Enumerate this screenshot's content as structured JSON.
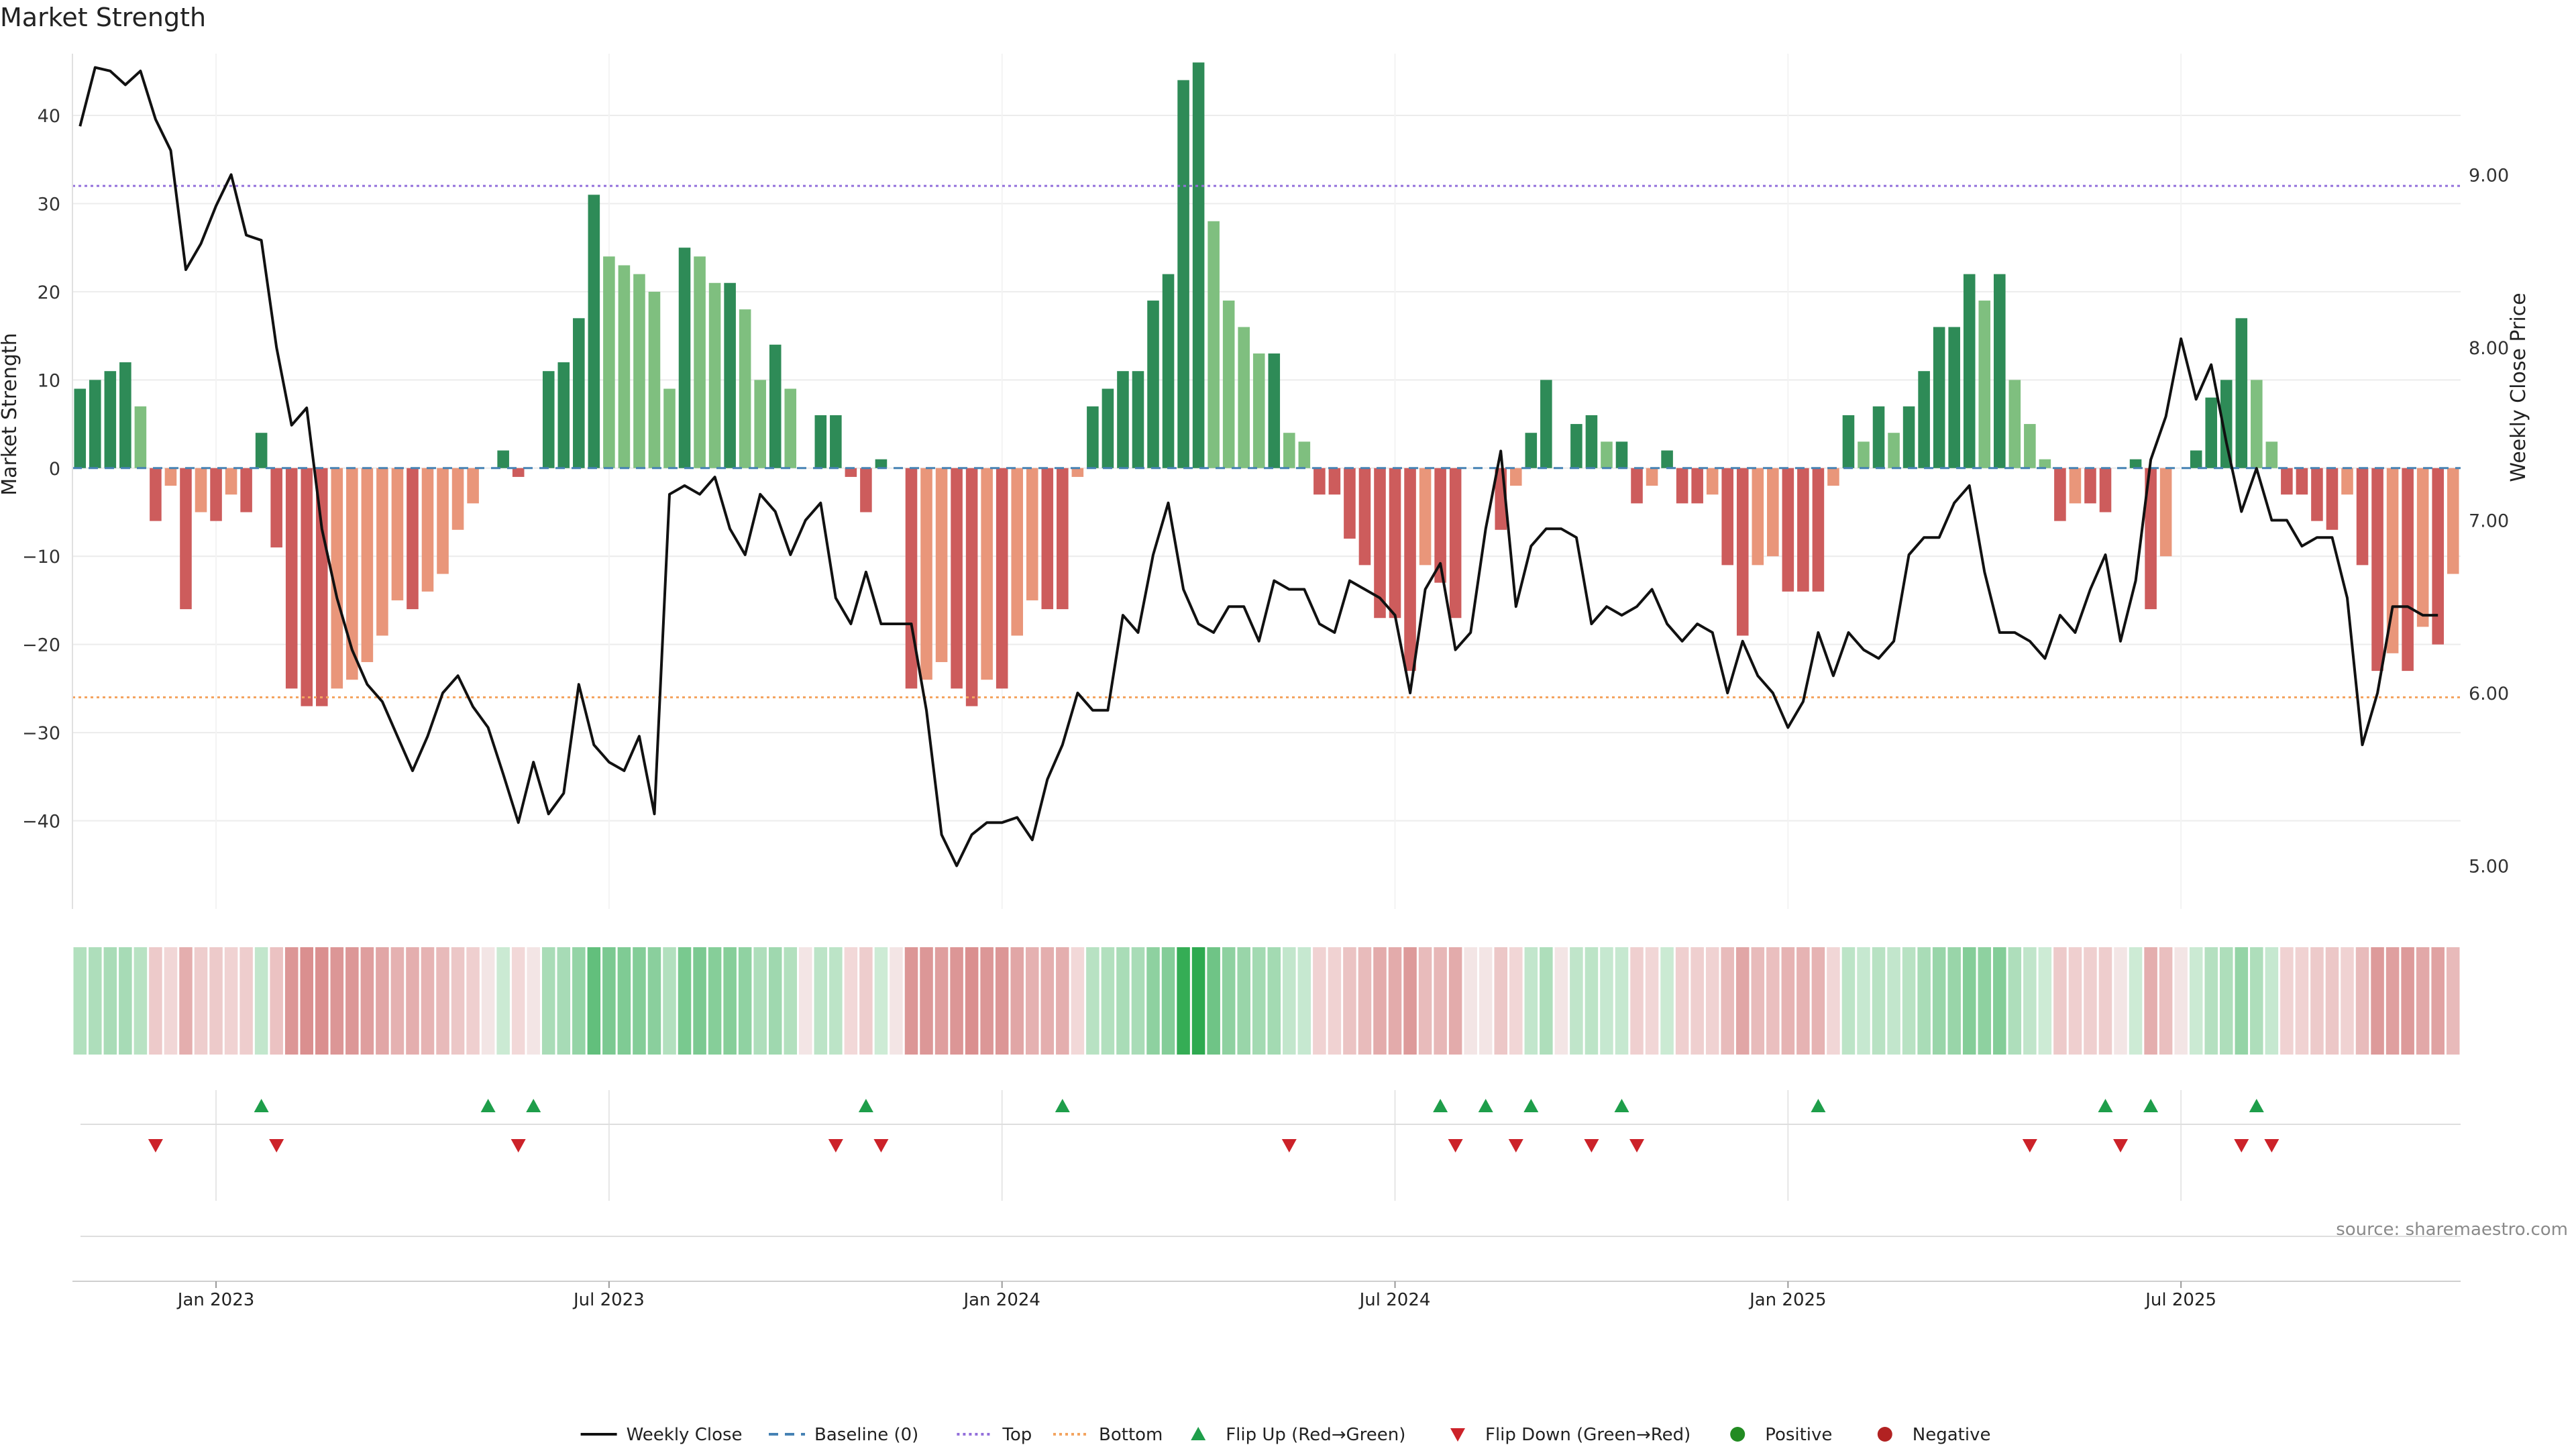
{
  "title": "Market Strength",
  "source": "source: sharemaestro.com",
  "colors": {
    "pos_strong": "#2e8b57",
    "pos_weak": "#7fbf7f",
    "neg_strong": "#cd5c5c",
    "neg_weak": "#e9967a",
    "price_line": "#111111",
    "baseline": "#4682b4",
    "top_line": "#9370db",
    "bottom_line": "#f4a460",
    "flip_up": "#1e9e4a",
    "flip_down": "#cc2229",
    "positive": "#228b22",
    "negative": "#b22222",
    "grid": "#ececec"
  },
  "chart_data": {
    "type": "bar+line",
    "title": "Market Strength",
    "ylabel_left": "Market Strength",
    "ylabel_right": "Weekly Close Price",
    "left_yticks": [
      -40,
      -30,
      -20,
      -10,
      0,
      10,
      20,
      30,
      40
    ],
    "left_ylim": [
      -50,
      47
    ],
    "right_yticks": [
      "5.00",
      "6.00",
      "7.00",
      "8.00",
      "9.00"
    ],
    "right_ylim": [
      4.75,
      9.7
    ],
    "x_tick_labels": [
      "Jan 2023",
      "Jul 2023",
      "Jan 2024",
      "Jul 2024",
      "Jan 2025",
      "Jul 2025"
    ],
    "x_tick_index": [
      9,
      35,
      61,
      87,
      113,
      139
    ],
    "top_level": 32,
    "bottom_level": -26,
    "strength": [
      9,
      10,
      11,
      12,
      7,
      -6,
      -2,
      -16,
      -5,
      -6,
      -3,
      -5,
      4,
      -9,
      -25,
      -27,
      -27,
      -25,
      -24,
      -22,
      -19,
      -15,
      -16,
      -14,
      -12,
      -7,
      -4,
      0,
      2,
      -1,
      0,
      11,
      12,
      17,
      31,
      24,
      23,
      22,
      20,
      9,
      25,
      24,
      21,
      21,
      18,
      10,
      14,
      9,
      0,
      6,
      6,
      -1,
      -5,
      1,
      0,
      -25,
      -24,
      -22,
      -25,
      -27,
      -24,
      -25,
      -19,
      -15,
      -16,
      -16,
      -1,
      7,
      9,
      11,
      11,
      19,
      22,
      44,
      46,
      28,
      19,
      16,
      13,
      13,
      4,
      3,
      -3,
      -3,
      -8,
      -11,
      -17,
      -17,
      -23,
      -11,
      -13,
      -17,
      0,
      0,
      -7,
      -2,
      4,
      10,
      0,
      5,
      6,
      3,
      3,
      -4,
      -2,
      2,
      -4,
      -4,
      -3,
      -11,
      -19,
      -11,
      -10,
      -14,
      -14,
      -14,
      -2,
      6,
      3,
      7,
      4,
      7,
      11,
      16,
      16,
      22,
      19,
      22,
      10,
      5,
      1,
      -6,
      -4,
      -4,
      -5,
      0,
      1,
      -16,
      -10,
      0,
      2,
      8,
      10,
      17,
      10,
      3,
      -3,
      -3,
      -6,
      -7,
      -3,
      -11,
      -23,
      -21,
      -23,
      -18,
      -20,
      -12
    ],
    "weekly_close": [
      9.28,
      9.62,
      9.6,
      9.52,
      9.6,
      9.32,
      9.14,
      8.45,
      8.6,
      8.82,
      9.0,
      8.65,
      8.62,
      8.0,
      7.55,
      7.65,
      6.95,
      6.55,
      6.25,
      6.05,
      5.95,
      5.75,
      5.55,
      5.75,
      6.0,
      6.1,
      5.92,
      5.8,
      5.53,
      5.25,
      5.6,
      5.3,
      5.42,
      6.05,
      5.7,
      5.6,
      5.55,
      5.75,
      5.3,
      7.15,
      7.2,
      7.15,
      7.25,
      6.95,
      6.8,
      7.15,
      7.05,
      6.8,
      7.0,
      7.1,
      6.55,
      6.4,
      6.7,
      6.4,
      6.4,
      6.4,
      5.9,
      5.18,
      5.0,
      5.18,
      5.25,
      5.25,
      5.28,
      5.15,
      5.5,
      5.7,
      6.0,
      5.9,
      5.9,
      6.45,
      6.35,
      6.8,
      7.1,
      6.6,
      6.4,
      6.35,
      6.5,
      6.5,
      6.3,
      6.65,
      6.6,
      6.6,
      6.4,
      6.35,
      6.65,
      6.6,
      6.55,
      6.45,
      6.0,
      6.6,
      6.75,
      6.25,
      6.35,
      6.95,
      7.4,
      6.5,
      6.85,
      6.95,
      6.95,
      6.9,
      6.4,
      6.5,
      6.45,
      6.5,
      6.6,
      6.4,
      6.3,
      6.4,
      6.35,
      6.0,
      6.3,
      6.1,
      6.0,
      5.8,
      5.95,
      6.35,
      6.1,
      6.35,
      6.25,
      6.2,
      6.3,
      6.8,
      6.9,
      6.9,
      7.1,
      7.2,
      6.7,
      6.35,
      6.35,
      6.3,
      6.2,
      6.45,
      6.35,
      6.6,
      6.8,
      6.3,
      6.65,
      7.35,
      7.6,
      8.05,
      7.7,
      7.9,
      7.45,
      7.05,
      7.3,
      7.0,
      7.0,
      6.85,
      6.9,
      6.9,
      6.55,
      5.7,
      6.0,
      6.5,
      6.5,
      6.45,
      6.45
    ],
    "flip_up_index": [
      12,
      27,
      30,
      52,
      65,
      90,
      93,
      96,
      102,
      115,
      134,
      137,
      144
    ],
    "flip_down_index": [
      5,
      13,
      29,
      50,
      53,
      80,
      91,
      95,
      100,
      103,
      129,
      135,
      143,
      145
    ],
    "legend": [
      {
        "label": "Weekly Close",
        "marker": "solid-line",
        "color": "#111111"
      },
      {
        "label": "Baseline (0)",
        "marker": "dashed-line",
        "color": "#4682b4"
      },
      {
        "label": "Top",
        "marker": "dotted-line",
        "color": "#9370db"
      },
      {
        "label": "Bottom",
        "marker": "dotted-line",
        "color": "#f4a460"
      },
      {
        "label": "Flip Up (Red→Green)",
        "marker": "triangle-up",
        "color": "#1e9e4a"
      },
      {
        "label": "Flip Down (Green→Red)",
        "marker": "triangle-down",
        "color": "#cc2229"
      },
      {
        "label": "Positive",
        "marker": "dot",
        "color": "#228b22"
      },
      {
        "label": "Negative",
        "marker": "dot",
        "color": "#b22222"
      }
    ],
    "legend_position": "bottom-center",
    "grid": true
  }
}
